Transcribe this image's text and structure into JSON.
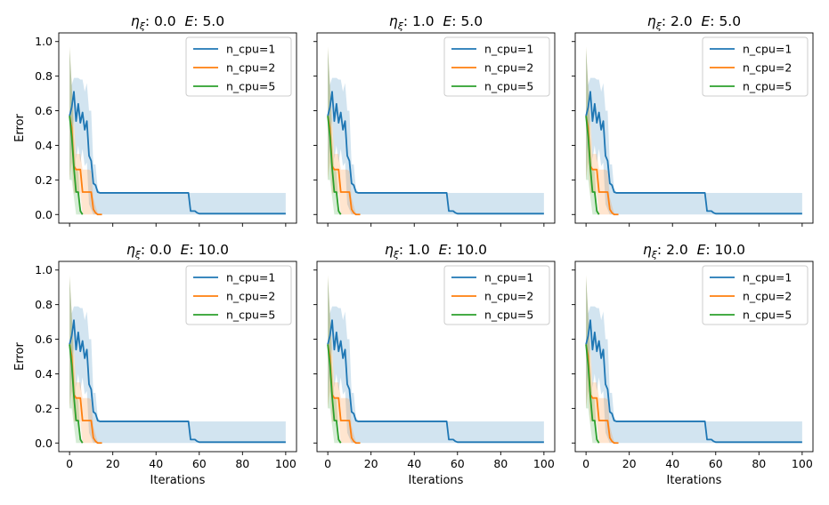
{
  "chart_data": {
    "type": "line",
    "layout": "2x3 grid of subplots",
    "xlabel": "Iterations",
    "ylabel": "Error",
    "xlim": [
      -5,
      105
    ],
    "ylim": [
      -0.05,
      1.05
    ],
    "xticks": [
      0,
      20,
      40,
      60,
      80,
      100
    ],
    "yticks": [
      0.0,
      0.2,
      0.4,
      0.6,
      0.8,
      1.0
    ],
    "xtick_labels": [
      "0",
      "20",
      "40",
      "60",
      "80",
      "100"
    ],
    "ytick_labels": [
      "0.0",
      "0.2",
      "0.4",
      "0.6",
      "0.8",
      "1.0"
    ],
    "legend_placement": "top-right",
    "grid": false,
    "colors": {
      "n_cpu=1": "#1f77b4",
      "n_cpu=2": "#ff7f0e",
      "n_cpu=5": "#2ca02c"
    },
    "subplots": [
      {
        "eta_label": "η",
        "eta_sub": "ξ",
        "eta": "0.0",
        "E_label": "E",
        "E": "5.0",
        "row": 0,
        "col": 0
      },
      {
        "eta_label": "η",
        "eta_sub": "ξ",
        "eta": "1.0",
        "E_label": "E",
        "E": "5.0",
        "row": 0,
        "col": 1
      },
      {
        "eta_label": "η",
        "eta_sub": "ξ",
        "eta": "2.0",
        "E_label": "E",
        "E": "5.0",
        "row": 0,
        "col": 2
      },
      {
        "eta_label": "η",
        "eta_sub": "ξ",
        "eta": "0.0",
        "E_label": "E",
        "E": "10.0",
        "row": 1,
        "col": 0
      },
      {
        "eta_label": "η",
        "eta_sub": "ξ",
        "eta": "1.0",
        "E_label": "E",
        "E": "10.0",
        "row": 1,
        "col": 1
      },
      {
        "eta_label": "η",
        "eta_sub": "ξ",
        "eta": "2.0",
        "E_label": "E",
        "E": "10.0",
        "row": 1,
        "col": 2
      }
    ],
    "series": [
      {
        "name": "n_cpu=1",
        "x": [
          0,
          1,
          2,
          3,
          4,
          5,
          6,
          7,
          8,
          9,
          10,
          11,
          12,
          13,
          14,
          15,
          55,
          56,
          57,
          58,
          59,
          60,
          100
        ],
        "y": [
          0.57,
          0.62,
          0.71,
          0.54,
          0.64,
          0.53,
          0.59,
          0.49,
          0.54,
          0.34,
          0.31,
          0.18,
          0.17,
          0.13,
          0.125,
          0.125,
          0.125,
          0.02,
          0.02,
          0.02,
          0.01,
          0.005,
          0.005
        ],
        "band_upper": [
          0.95,
          0.75,
          0.79,
          0.79,
          0.79,
          0.78,
          0.78,
          0.71,
          0.76,
          0.6,
          0.6,
          0.29,
          0.29,
          0.15,
          0.13,
          0.125,
          0.125,
          0.125,
          0.125,
          0.125,
          0.125,
          0.125,
          0.125
        ],
        "band_lower": [
          0.2,
          0.45,
          0.55,
          0.32,
          0.4,
          0.3,
          0.38,
          0.28,
          0.3,
          0.06,
          0.03,
          0.0,
          0.0,
          0.0,
          0.0,
          0.0,
          0.0,
          0.0,
          0.0,
          0.0,
          0.0,
          0.0,
          0.0
        ]
      },
      {
        "name": "n_cpu=2",
        "x": [
          0,
          1,
          2,
          3,
          4,
          5,
          6,
          7,
          8,
          9,
          10,
          11,
          12,
          13,
          14,
          15
        ],
        "y": [
          0.57,
          0.5,
          0.28,
          0.26,
          0.26,
          0.26,
          0.13,
          0.13,
          0.13,
          0.13,
          0.13,
          0.03,
          0.01,
          0.0,
          0.0,
          0.0
        ],
        "band_upper": [
          0.97,
          0.75,
          0.55,
          0.35,
          0.35,
          0.35,
          0.26,
          0.26,
          0.26,
          0.26,
          0.25,
          0.1,
          0.05,
          0.01,
          0.0,
          0.0
        ],
        "band_lower": [
          0.2,
          0.3,
          0.12,
          0.13,
          0.13,
          0.12,
          0.0,
          0.0,
          0.0,
          0.0,
          0.0,
          0.0,
          0.0,
          0.0,
          0.0,
          0.0
        ]
      },
      {
        "name": "n_cpu=5",
        "x": [
          0,
          1,
          2,
          3,
          4,
          5,
          6
        ],
        "y": [
          0.57,
          0.45,
          0.27,
          0.13,
          0.13,
          0.02,
          0.0
        ],
        "band_upper": [
          0.97,
          0.75,
          0.45,
          0.26,
          0.25,
          0.05,
          0.0
        ],
        "band_lower": [
          0.2,
          0.2,
          0.1,
          0.0,
          0.0,
          0.0,
          0.0
        ]
      }
    ]
  }
}
